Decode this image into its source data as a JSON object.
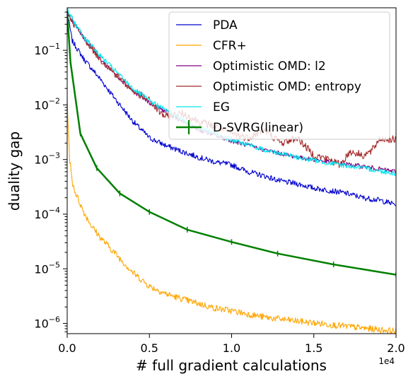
{
  "chart_data": {
    "type": "line",
    "xlabel": "# full gradient calculations",
    "ylabel": "duality gap",
    "x_offset_label": "1e4",
    "xlim": [
      0,
      20000
    ],
    "ylim": [
      6.5e-07,
      0.6
    ],
    "yscale": "log",
    "grid": false,
    "legend_position": "top-right",
    "x_ticks": [
      {
        "value": 0,
        "label": "0.0"
      },
      {
        "value": 5000,
        "label": "0.5"
      },
      {
        "value": 10000,
        "label": "1.0"
      },
      {
        "value": 15000,
        "label": "1.5"
      },
      {
        "value": 20000,
        "label": "2.0"
      }
    ],
    "y_ticks": [
      {
        "value": 0.1,
        "label": "10",
        "exp": "−1"
      },
      {
        "value": 0.01,
        "label": "10",
        "exp": "−2"
      },
      {
        "value": 0.001,
        "label": "10",
        "exp": "−3"
      },
      {
        "value": 0.0001,
        "label": "10",
        "exp": "−4"
      },
      {
        "value": 1e-05,
        "label": "10",
        "exp": "−5"
      },
      {
        "value": 1e-06,
        "label": "10",
        "exp": "−6"
      }
    ],
    "series": [
      {
        "name": "PDA",
        "color": "#0000cd",
        "noise": 0.05,
        "points": [
          [
            0,
            0.5
          ],
          [
            300,
            0.15
          ],
          [
            1000,
            0.07
          ],
          [
            2000,
            0.03
          ],
          [
            3000,
            0.012
          ],
          [
            4000,
            0.005
          ],
          [
            5000,
            0.0025
          ],
          [
            6000,
            0.0018
          ],
          [
            7000,
            0.0014
          ],
          [
            8000,
            0.0011
          ],
          [
            9000,
            0.0009
          ],
          [
            10000,
            0.0008
          ],
          [
            11000,
            0.0006
          ],
          [
            12000,
            0.0005
          ],
          [
            13000,
            0.0004
          ],
          [
            14000,
            0.00036
          ],
          [
            15000,
            0.0003
          ],
          [
            16000,
            0.00027
          ],
          [
            17000,
            0.00024
          ],
          [
            18000,
            0.0002
          ],
          [
            19000,
            0.00018
          ],
          [
            20000,
            0.00015
          ]
        ]
      },
      {
        "name": "CFR+",
        "color": "#ffa500",
        "noise": 0.06,
        "points": [
          [
            0,
            0.012
          ],
          [
            150,
            0.001
          ],
          [
            300,
            0.0004
          ],
          [
            500,
            0.00025
          ],
          [
            1000,
            0.00011
          ],
          [
            1500,
            6e-05
          ],
          [
            2000,
            3.8e-05
          ],
          [
            3000,
            1.8e-05
          ],
          [
            4000,
            8.5e-06
          ],
          [
            5000,
            4.8e-06
          ],
          [
            6000,
            3.5e-06
          ],
          [
            7000,
            2.8e-06
          ],
          [
            8000,
            2.3e-06
          ],
          [
            9000,
            1.9e-06
          ],
          [
            10000,
            1.7e-06
          ],
          [
            12000,
            1.3e-06
          ],
          [
            14000,
            1.1e-06
          ],
          [
            16000,
            9.5e-07
          ],
          [
            18000,
            8.2e-07
          ],
          [
            20000,
            7.2e-07
          ]
        ]
      },
      {
        "name": "Optimistic OMD: l2",
        "color": "#800080",
        "noise": 0.04,
        "points": [
          [
            0,
            0.5
          ],
          [
            500,
            0.28
          ],
          [
            1000,
            0.17
          ],
          [
            1500,
            0.11
          ],
          [
            2000,
            0.07
          ],
          [
            3000,
            0.035
          ],
          [
            4000,
            0.018
          ],
          [
            5000,
            0.011
          ],
          [
            6000,
            0.0075
          ],
          [
            7000,
            0.005
          ],
          [
            8000,
            0.0035
          ],
          [
            10000,
            0.0022
          ],
          [
            12000,
            0.0015
          ],
          [
            14000,
            0.0011
          ],
          [
            16000,
            0.0009
          ],
          [
            18000,
            0.00075
          ],
          [
            20000,
            0.0006
          ]
        ]
      },
      {
        "name": "Optimistic OMD: entropy",
        "color": "#a52a2a",
        "noise": 0.07,
        "points": [
          [
            0,
            0.5
          ],
          [
            500,
            0.28
          ],
          [
            1000,
            0.17
          ],
          [
            1500,
            0.11
          ],
          [
            2000,
            0.07
          ],
          [
            3000,
            0.035
          ],
          [
            4000,
            0.018
          ],
          [
            5000,
            0.012
          ],
          [
            5500,
            0.008
          ],
          [
            6000,
            0.006
          ],
          [
            7000,
            0.007
          ],
          [
            8000,
            0.005
          ],
          [
            9000,
            0.004
          ],
          [
            10000,
            0.003
          ],
          [
            11000,
            0.0025
          ],
          [
            12000,
            0.0035
          ],
          [
            13000,
            0.002
          ],
          [
            14000,
            0.0025
          ],
          [
            15000,
            0.0012
          ],
          [
            16000,
            0.001
          ],
          [
            16600,
            0.0008
          ],
          [
            17200,
            0.0014
          ],
          [
            18000,
            0.0012
          ],
          [
            18500,
            0.0014
          ],
          [
            19000,
            0.0024
          ],
          [
            20000,
            0.0023
          ]
        ]
      },
      {
        "name": "EG",
        "color": "#00e5ee",
        "noise": 0.045,
        "points": [
          [
            0,
            0.55
          ],
          [
            500,
            0.3
          ],
          [
            1000,
            0.18
          ],
          [
            1500,
            0.12
          ],
          [
            2000,
            0.08
          ],
          [
            3000,
            0.04
          ],
          [
            4000,
            0.02
          ],
          [
            5000,
            0.012
          ],
          [
            6000,
            0.008
          ],
          [
            7000,
            0.0055
          ],
          [
            8000,
            0.0038
          ],
          [
            10000,
            0.0023
          ],
          [
            12000,
            0.0015
          ],
          [
            14000,
            0.0011
          ],
          [
            16000,
            0.00085
          ],
          [
            18000,
            0.0007
          ],
          [
            20000,
            0.00055
          ]
        ]
      },
      {
        "name": "D-SVRG(linear)",
        "color": "#008000",
        "noise": 0,
        "thick": true,
        "points": [
          [
            0,
            0.5
          ],
          [
            200,
            0.06
          ],
          [
            800,
            0.003
          ],
          [
            1800,
            0.0007
          ],
          [
            3200,
            0.00024
          ],
          [
            5000,
            0.00011
          ],
          [
            7300,
            5.2e-05
          ],
          [
            10000,
            3.1e-05
          ],
          [
            12800,
            1.9e-05
          ],
          [
            16200,
            1.2e-05
          ],
          [
            20000,
            7.8e-06
          ]
        ]
      }
    ]
  }
}
